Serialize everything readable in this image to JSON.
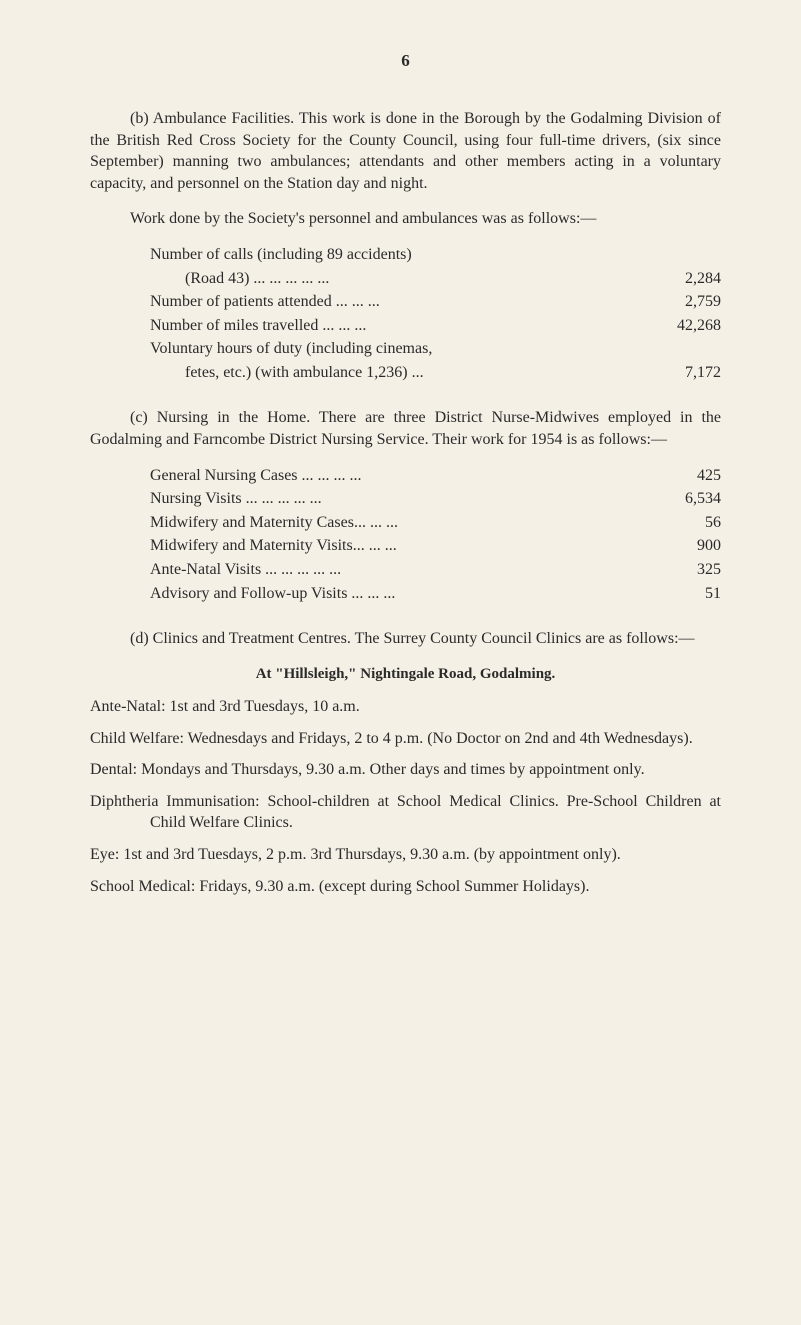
{
  "page_number": "6",
  "section_b": {
    "para1": "(b) Ambulance Facilities. This work is done in the Borough by the Godalming Division of the British Red Cross Society for the County Council, using four full-time drivers, (six since September) manning two ambulances; attendants and other members acting in a voluntary capacity, and personnel on the Station day and night.",
    "para2": "Work done by the Society's personnel and ambulances was as follows:—",
    "data": [
      {
        "label": "Number of calls (including 89 accidents)",
        "value": ""
      },
      {
        "label": "(Road 43)     ...     ...     ...     ...     ...",
        "value": "2,284",
        "sub": true
      },
      {
        "label": "Number of patients attended   ...     ...     ...",
        "value": "2,759"
      },
      {
        "label": "Number of miles travelled      ...     ...     ...",
        "value": "42,268"
      },
      {
        "label": "Voluntary hours of duty (including cinemas,",
        "value": ""
      },
      {
        "label": "fetes, etc.) (with ambulance 1,236)      ...",
        "value": "7,172",
        "sub": true
      }
    ]
  },
  "section_c": {
    "para1": "(c) Nursing in the Home. There are three District Nurse-Midwives employed in the Godalming and Farncombe District Nursing Service. Their work for 1954 is as follows:—",
    "data": [
      {
        "label": "General Nursing Cases    ...     ...     ...     ...",
        "value": "425"
      },
      {
        "label": "Nursing Visits        ...     ...     ...     ...     ...",
        "value": "6,534"
      },
      {
        "label": "Midwifery and Maternity Cases...    ...     ...",
        "value": "56"
      },
      {
        "label": "Midwifery and Maternity Visits...    ...     ...",
        "value": "900"
      },
      {
        "label": "Ante-Natal Visits ...     ...     ...     ...     ...",
        "value": "325"
      },
      {
        "label": "Advisory and Follow-up Visits ...    ...     ...",
        "value": "51"
      }
    ]
  },
  "section_d": {
    "para1": "(d) Clinics and Treatment Centres. The Surrey County Council Clinics are as follows:—",
    "heading": "At \"Hillsleigh,\" Nightingale Road, Godalming.",
    "items": [
      "Ante-Natal: 1st and 3rd Tuesdays, 10 a.m.",
      "Child Welfare: Wednesdays and Fridays, 2 to 4 p.m. (No Doctor on 2nd and 4th Wednesdays).",
      "Dental: Mondays and Thursdays, 9.30 a.m. Other days and times by appointment only.",
      "Diphtheria Immunisation: School-children at School Medical Clinics. Pre-School Children at Child Welfare Clinics.",
      "Eye: 1st and 3rd Tuesdays, 2 p.m. 3rd Thursdays, 9.30 a.m. (by appointment only).",
      "School Medical: Fridays, 9.30 a.m. (except during School Summer Holidays)."
    ]
  }
}
